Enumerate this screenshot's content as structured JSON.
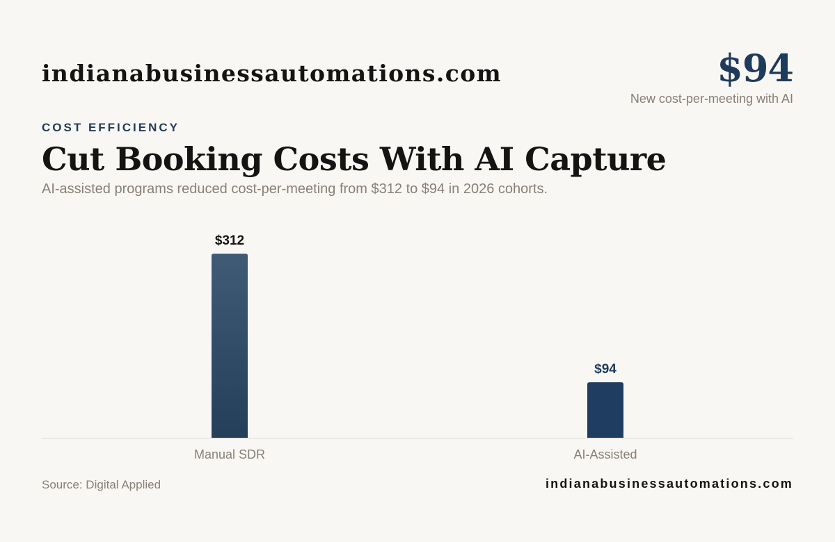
{
  "header": {
    "brand": "indianabusinessautomations.com",
    "hero_value": "$94",
    "hero_caption": "New cost-per-meeting with AI",
    "eyebrow": "COST EFFICIENCY",
    "title": "Cut Booking Costs With AI Capture",
    "subtitle": "AI-assisted programs reduced cost-per-meeting from $312 to $94 in 2026 cohorts."
  },
  "chart_data": {
    "type": "bar",
    "categories": [
      "Manual SDR",
      "AI-Assisted"
    ],
    "values": [
      312,
      94
    ],
    "value_labels": [
      "$312",
      "$94"
    ],
    "title": "",
    "xlabel": "",
    "ylabel": "",
    "ylim": [
      0,
      312
    ],
    "grid": false,
    "legend": "none"
  },
  "footer": {
    "source": "Source: Digital Applied",
    "brand": "indianabusinessautomations.com"
  },
  "colors": {
    "accent": "#1f3b5c",
    "bar_manual_top": "#405b76",
    "bar_manual_bottom": "#243f5a",
    "bar_ai": "#1f3d60",
    "value_label_manual": "#141414",
    "value_label_ai": "#1f3b5c",
    "axis": "#dcd7d0",
    "muted_text": "#888077",
    "background": "#f9f7f3"
  }
}
